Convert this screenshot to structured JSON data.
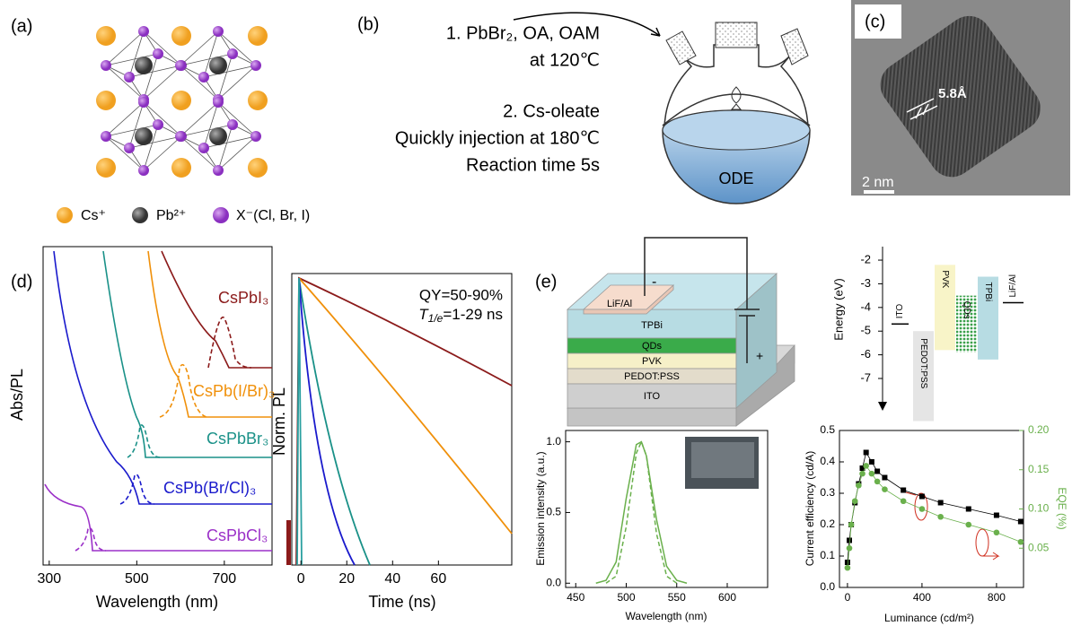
{
  "panel_a": {
    "label": "(a)",
    "legend": [
      "Cs⁺",
      "Pb²⁺",
      "X⁻(Cl, Br, I)"
    ]
  },
  "panel_b": {
    "label": "(b)",
    "steps": [
      "1. PbBr₂, OA, OAM",
      "at 120℃",
      "2. Cs-oleate",
      "Quickly injection at 180℃",
      "Reaction time 5s"
    ],
    "solvent": "ODE"
  },
  "panel_c": {
    "label": "(c)",
    "spacing": "5.8Å",
    "scale_bar": "2 nm"
  },
  "panel_d": {
    "label": "(d)",
    "spectra": {
      "type": "line",
      "x_label": "Wavelength (nm)",
      "y_label": "Abs/PL",
      "xlim": [
        286,
        809
      ],
      "xticks": [
        300,
        500,
        700
      ],
      "samples": [
        "CsPbI₃",
        "CsPb(I/Br)₃",
        "CsPbBr₃",
        "CsPb(Br/Cl)₃",
        "CsPbCl₃"
      ]
    },
    "decay": {
      "type": "line",
      "x_label": "Time (ns)",
      "y_label": "Norm. PL",
      "xlim": [
        -4,
        92
      ],
      "xticks": [
        0,
        20,
        40,
        60
      ],
      "qy": "QY=50-90%",
      "lifetime_symbol": "T",
      "lifetime_subscript": "1/e",
      "lifetime_text": "=1-29 ns"
    }
  },
  "panel_e": {
    "label": "(e)",
    "device_layers": [
      "LiF/Al",
      "TPBi",
      "QDs",
      "PVK",
      "PEDOT:PSS",
      "ITO"
    ],
    "polarity": [
      "-",
      "+"
    ],
    "energy": {
      "type": "bar",
      "y_label": "Energy (eV)",
      "ylim": [
        -8.25,
        -1.43
      ],
      "yticks": [
        -2,
        -3,
        -4,
        -5,
        -6,
        -7
      ],
      "materials": [
        {
          "name": "ITO",
          "level": -4.7
        },
        {
          "name": "PEDOT:PSS",
          "top": -5.0,
          "bottom": -8.8
        },
        {
          "name": "PVK",
          "top": -2.2,
          "bottom": -5.8
        },
        {
          "name": "QDs",
          "top": -3.5,
          "bottom": -5.9
        },
        {
          "name": "TPBi",
          "top": -2.7,
          "bottom": -6.2
        },
        {
          "name": "LiF/Al",
          "level": -3.8
        }
      ]
    },
    "emission": {
      "type": "line",
      "x_label": "Wavelength (nm)",
      "y_label": "Emission intensity (a.u.)",
      "xlim": [
        440,
        640
      ],
      "xticks": [
        450,
        500,
        550,
        600
      ],
      "ylim": [
        -0.03,
        1.08
      ],
      "yticks": [
        {
          "value": 0,
          "label": "0.0"
        },
        {
          "value": 0.5,
          "label": "0.5"
        },
        {
          "value": 1,
          "label": "1.0"
        }
      ],
      "series": [
        {
          "color": "#6ab04c",
          "dashed": false,
          "x": [
            470,
            480,
            490,
            500,
            510,
            515,
            520,
            530,
            540,
            550,
            560
          ],
          "values": [
            0,
            0.02,
            0.15,
            0.6,
            0.98,
            1.0,
            0.9,
            0.45,
            0.12,
            0.02,
            0
          ]
        },
        {
          "color": "#6ab04c",
          "dashed": true,
          "x": [
            480,
            490,
            500,
            510,
            515,
            520,
            530,
            540,
            550
          ],
          "values": [
            0,
            0.05,
            0.4,
            0.92,
            1.0,
            0.9,
            0.35,
            0.05,
            0
          ]
        }
      ]
    },
    "efficiency": {
      "type": "scatter",
      "x_label": "Luminance (cd/m²)",
      "y_label": "Current efficiency (cd/A)",
      "y2_label": "EQE (%)",
      "xlim": [
        -43,
        945
      ],
      "xticks": [
        0,
        400,
        800
      ],
      "ylim": [
        0,
        0.5
      ],
      "yticks": [
        {
          "value": 0,
          "label": "0.0"
        },
        0.1,
        0.2,
        0.3,
        0.4,
        0.5
      ],
      "y2lim": [
        0,
        0.2
      ],
      "y2ticks": [
        0.05,
        {
          "value": 0.1,
          "label": "0.10"
        },
        0.15,
        {
          "value": 0.2,
          "label": "0.20"
        }
      ],
      "y2color": "#6ab04c",
      "series": [
        {
          "color": "#000000",
          "marker": "square",
          "x": [
            0,
            10,
            20,
            40,
            60,
            80,
            100,
            130,
            160,
            200,
            300,
            400,
            500,
            650,
            800,
            930
          ],
          "values": [
            0.08,
            0.15,
            0.2,
            0.27,
            0.33,
            0.38,
            0.43,
            0.4,
            0.37,
            0.35,
            0.31,
            0.29,
            0.27,
            0.25,
            0.23,
            0.21
          ]
        },
        {
          "color": "#6ab04c",
          "marker": "circle",
          "axis": "y2",
          "x": [
            0,
            10,
            20,
            40,
            60,
            80,
            100,
            130,
            160,
            200,
            300,
            400,
            500,
            650,
            800,
            930
          ],
          "values": [
            0.025,
            0.05,
            0.08,
            0.11,
            0.13,
            0.145,
            0.155,
            0.145,
            0.135,
            0.125,
            0.11,
            0.1,
            0.09,
            0.08,
            0.07,
            0.058
          ]
        }
      ]
    }
  }
}
